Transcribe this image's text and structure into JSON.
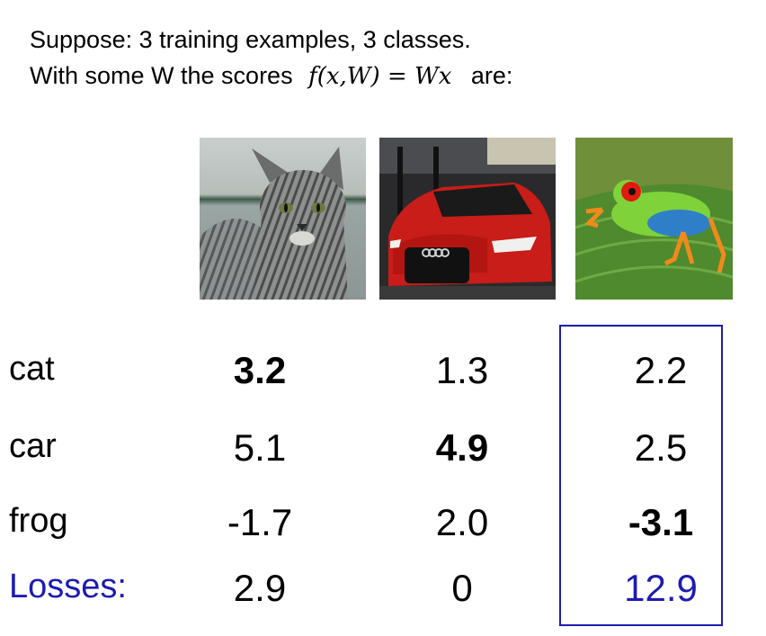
{
  "intro": {
    "line1": "Suppose: 3 training examples, 3 classes.",
    "line2_prefix": "With some W the scores",
    "formula": "f(x,W) = Wx",
    "line2_suffix": "are:"
  },
  "images": [
    {
      "name": "cat",
      "icon": "cat-photo"
    },
    {
      "name": "car",
      "icon": "car-photo"
    },
    {
      "name": "frog",
      "icon": "frog-photo"
    }
  ],
  "rows": {
    "cat": {
      "label": "cat",
      "scores": [
        "3.2",
        "1.3",
        "2.2"
      ]
    },
    "car": {
      "label": "car",
      "scores": [
        "5.1",
        "4.9",
        "2.5"
      ]
    },
    "frog": {
      "label": "frog",
      "scores": [
        "-1.7",
        "2.0",
        "-3.1"
      ]
    }
  },
  "losses": {
    "label": "Losses:",
    "values": [
      "2.9",
      "0",
      "12.9"
    ]
  },
  "colors": {
    "losses_label": "#1c1cb0",
    "highlight_box": "#1c1caa"
  }
}
